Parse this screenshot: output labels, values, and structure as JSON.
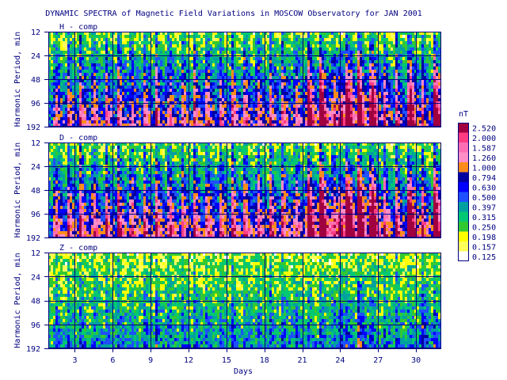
{
  "chart_data": {
    "type": "heatmap",
    "title": "DYNAMIC SPECTRA of Magnetic Field Variations in MOSCOW Observatory for JAN 2001",
    "xlabel": "Days",
    "x_ticks": [
      "3",
      "6",
      "9",
      "12",
      "15",
      "18",
      "21",
      "24",
      "27",
      "30"
    ],
    "x_tick_values": [
      3,
      6,
      9,
      12,
      15,
      18,
      21,
      24,
      27,
      30
    ],
    "xlim": [
      0.9,
      32.0
    ],
    "ylabel": "Harmonic Period, min",
    "y_ticks": [
      "12",
      "24",
      "48",
      "96",
      "192"
    ],
    "y_scale": "log2",
    "ylim": [
      12,
      192
    ],
    "panels": [
      {
        "name": "H - comp",
        "intensity": 1.0,
        "storm_days": [
          21.5,
          22.5,
          24,
          24.7,
          25.5,
          26.5,
          29.5,
          31.5
        ]
      },
      {
        "name": "D - comp",
        "intensity": 1.12,
        "storm_days": [
          21.5,
          22.5,
          24,
          24.7,
          25.5,
          26.5,
          29.5,
          31.5
        ]
      },
      {
        "name": "Z - comp",
        "intensity": 0.45,
        "storm_days": [
          24,
          25.5,
          30.5
        ]
      }
    ],
    "colorbar": {
      "unit": "nT",
      "levels": [
        "2.520",
        "2.000",
        "1.587",
        "1.260",
        "1.000",
        "0.794",
        "0.630",
        "0.500",
        "0.397",
        "0.315",
        "0.250",
        "0.198",
        "0.157",
        "0.125"
      ],
      "colors": [
        "#a00040",
        "#ff3c82",
        "#ff6eb4",
        "#ff8ec6",
        "#ff8c1a",
        "#0000a0",
        "#0000ff",
        "#1e50ff",
        "#00a0a0",
        "#00c873",
        "#32c832",
        "#ffff00",
        "#ffff5a",
        "#ffffff"
      ]
    }
  }
}
